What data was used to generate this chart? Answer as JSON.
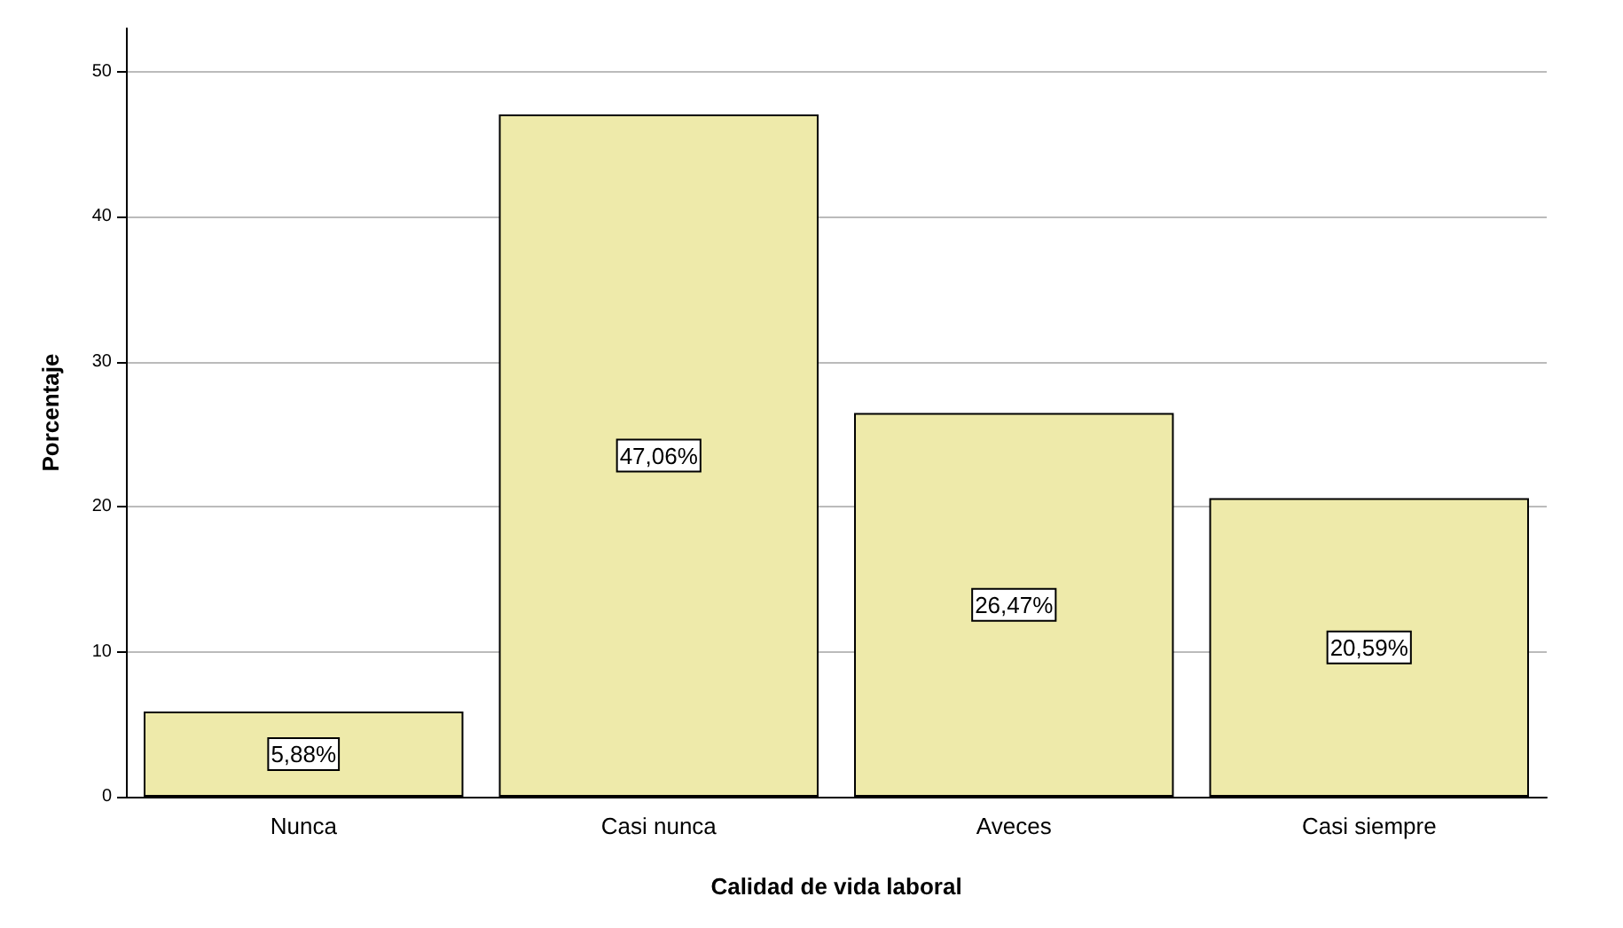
{
  "chart_data": {
    "type": "bar",
    "xlabel": "Calidad de vida laboral",
    "ylabel": "Porcentaje",
    "categories": [
      "Nunca",
      "Casi nunca",
      "Aveces",
      "Casi siempre"
    ],
    "values": [
      5.88,
      47.06,
      26.47,
      20.59
    ],
    "value_labels": [
      "5,88%",
      "47,06%",
      "26,47%",
      "20,59%"
    ],
    "color": "#eeeaaa",
    "ylim": [
      0,
      53
    ],
    "yticks": [
      0,
      10,
      20,
      30,
      40,
      50
    ],
    "grid": "y"
  }
}
